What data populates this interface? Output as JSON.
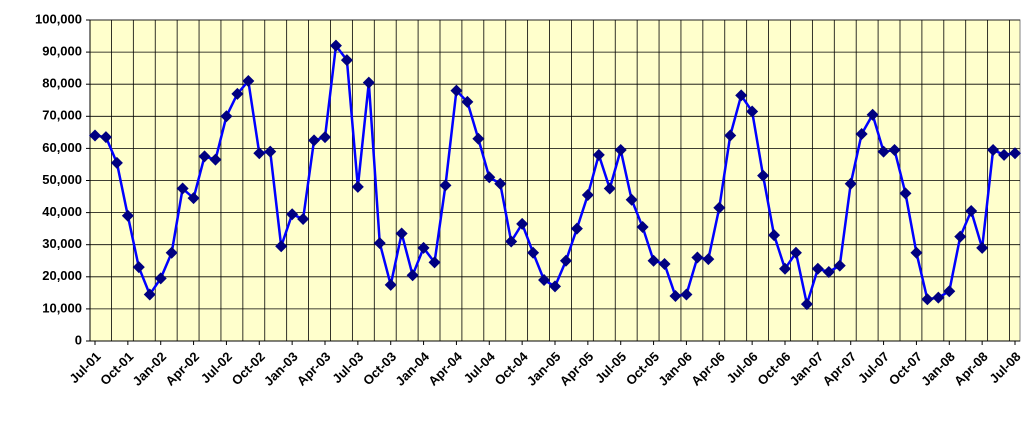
{
  "chart_data": {
    "type": "line",
    "categories": [
      "Jul-01",
      null,
      null,
      "Oct-01",
      null,
      null,
      "Jan-02",
      null,
      null,
      "Apr-02",
      null,
      null,
      "Jul-02",
      null,
      null,
      "Oct-02",
      null,
      null,
      "Jan-03",
      null,
      null,
      "Apr-03",
      null,
      null,
      "Jul-03",
      null,
      null,
      "Oct-03",
      null,
      null,
      "Jan-04",
      null,
      null,
      "Apr-04",
      null,
      null,
      "Jul-04",
      null,
      null,
      "Oct-04",
      null,
      null,
      "Jan-05",
      null,
      null,
      "Apr-05",
      null,
      null,
      "Jul-05",
      null,
      null,
      "Oct-05",
      null,
      null,
      "Jan-06",
      null,
      null,
      "Apr-06",
      null,
      null,
      "Jul-06",
      null,
      null,
      "Oct-06",
      null,
      null,
      "Jan-07",
      null,
      null,
      "Apr-07",
      null,
      null,
      "Jul-07",
      null,
      null,
      "Oct-07",
      null,
      null,
      "Jan-08",
      null,
      null,
      "Apr-08",
      null,
      null,
      "Jul-08"
    ],
    "series": [
      {
        "color": "#0000ff",
        "marker_color": "#000080",
        "values": [
          64000,
          63500,
          55500,
          39000,
          23000,
          14500,
          19500,
          27500,
          47500,
          44500,
          57500,
          56500,
          70000,
          77000,
          81000,
          58500,
          59000,
          29500,
          39500,
          38000,
          62500,
          63500,
          92000,
          87500,
          48000,
          80500,
          30500,
          17500,
          33500,
          20500,
          29000,
          24500,
          48500,
          78000,
          74500,
          63000,
          51000,
          49000,
          31000,
          36500,
          27500,
          19000,
          17000,
          25000,
          35000,
          45500,
          58000,
          47500,
          59500,
          44000,
          35500,
          25000,
          24000,
          14000,
          14500,
          26000,
          25500,
          41500,
          64000,
          76500,
          71500,
          51500,
          33000,
          22500,
          27500,
          11500,
          22500,
          21500,
          23500,
          49000,
          64500,
          70500,
          59000,
          59500,
          46000,
          27500,
          13000,
          13500,
          15500,
          32500,
          40500,
          29000,
          59500,
          58000,
          58500
        ]
      }
    ],
    "ylim": [
      0,
      100000
    ],
    "yticks": [
      0,
      {
        "value": 10000,
        "label": "10,000"
      },
      {
        "value": 20000,
        "label": "20,000"
      },
      {
        "value": 30000,
        "label": "30,000"
      },
      {
        "value": 40000,
        "label": "40,000"
      },
      {
        "value": 50000,
        "label": "50,000"
      },
      {
        "value": 60000,
        "label": "60,000"
      },
      {
        "value": 70000,
        "label": "70,000"
      },
      {
        "value": 80000,
        "label": "80,000"
      },
      {
        "value": 90000,
        "label": "90,000"
      },
      {
        "value": 100000,
        "label": "100,000"
      }
    ],
    "grid": true,
    "background": "#ffffcc"
  }
}
